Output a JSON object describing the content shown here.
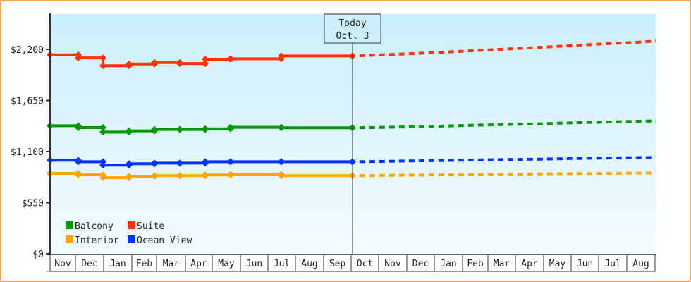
{
  "chart_data": {
    "type": "line",
    "title": "",
    "xlabel": "",
    "ylabel": "",
    "ylim": [
      0,
      2580
    ],
    "y_ticks": [
      "$0",
      "$550",
      "$1,100",
      "$1,650",
      "$2,200"
    ],
    "y_tick_values": [
      0,
      550,
      1100,
      1650,
      2200
    ],
    "categories": [
      "Nov",
      "Dec",
      "Jan",
      "Feb",
      "Mar",
      "Apr",
      "May",
      "Jun",
      "Jul",
      "Aug",
      "Sep",
      "Oct",
      "Nov",
      "Dec",
      "Jan",
      "Feb",
      "Mar",
      "Apr",
      "May",
      "Jun",
      "Jul",
      "Aug"
    ],
    "today": {
      "label": "Today",
      "date": "Oct. 3",
      "month_position": "Oct 3"
    },
    "grid": false,
    "legend_placement": "bottom-left",
    "background": {
      "top": "#cbeffc",
      "bottom": "#f3fbff"
    },
    "series": [
      {
        "name": "Balcony",
        "color": "#009900",
        "history": [
          [
            "Nov 1",
            1378
          ],
          [
            "Dec 1",
            1358
          ],
          [
            "Jan 1",
            1310
          ],
          [
            "Feb 1",
            1323
          ],
          [
            "Mar 1",
            1338
          ],
          [
            "Apr 1",
            1338
          ],
          [
            "May 1",
            1345
          ],
          [
            "Jun 1",
            1361
          ],
          [
            "Aug 1",
            1356
          ],
          [
            "Oct 3",
            1356
          ]
        ],
        "forecast": [
          [
            "Oct 3",
            1356
          ],
          [
            "Nov 1",
            1360
          ],
          [
            "Dec 1",
            1365
          ],
          [
            "Jan 1",
            1372
          ],
          [
            "Feb 1",
            1380
          ],
          [
            "Mar 1",
            1388
          ],
          [
            "Apr 1",
            1394
          ],
          [
            "May 1",
            1400
          ],
          [
            "Jun 1",
            1410
          ],
          [
            "Jul 1",
            1416
          ],
          [
            "Aug 1",
            1424
          ],
          [
            "Sep 1",
            1431
          ]
        ]
      },
      {
        "name": "Suite",
        "color": "#ff3300",
        "history": [
          [
            "Nov 1",
            2142
          ],
          [
            "Dec 1",
            2109
          ],
          [
            "Jan 1",
            2024
          ],
          [
            "Feb 1",
            2043
          ],
          [
            "Mar 1",
            2058
          ],
          [
            "Apr 1",
            2048
          ],
          [
            "May 1",
            2094
          ],
          [
            "Jun 1",
            2099
          ],
          [
            "Aug 1",
            2129
          ],
          [
            "Oct 3",
            2129
          ]
        ],
        "forecast": [
          [
            "Oct 3",
            2129
          ],
          [
            "Nov 1",
            2140
          ],
          [
            "Dec 1",
            2152
          ],
          [
            "Jan 1",
            2165
          ],
          [
            "Feb 1",
            2180
          ],
          [
            "Mar 1",
            2195
          ],
          [
            "Apr 1",
            2210
          ],
          [
            "May 1",
            2225
          ],
          [
            "Jun 1",
            2242
          ],
          [
            "Jul 1",
            2258
          ],
          [
            "Aug 1",
            2272
          ],
          [
            "Sep 1",
            2289
          ]
        ]
      },
      {
        "name": "Interior",
        "color": "#ffa500",
        "history": [
          [
            "Nov 1",
            865
          ],
          [
            "Dec 1",
            850
          ],
          [
            "Jan 1",
            819
          ],
          [
            "Feb 1",
            835
          ],
          [
            "Mar 1",
            840
          ],
          [
            "Apr 1",
            840
          ],
          [
            "May 1",
            848
          ],
          [
            "Jun 1",
            855
          ],
          [
            "Aug 1",
            840
          ],
          [
            "Oct 3",
            840
          ]
        ],
        "forecast": [
          [
            "Oct 3",
            840
          ],
          [
            "Nov 1",
            842
          ],
          [
            "Dec 1",
            846
          ],
          [
            "Jan 1",
            848
          ],
          [
            "Feb 1",
            852
          ],
          [
            "Mar 1",
            854
          ],
          [
            "Apr 1",
            856
          ],
          [
            "May 1",
            860
          ],
          [
            "Jun 1",
            862
          ],
          [
            "Jul 1",
            864
          ],
          [
            "Aug 1",
            868
          ],
          [
            "Sep 1",
            870
          ]
        ]
      },
      {
        "name": "Ocean View",
        "color": "#0033ff",
        "history": [
          [
            "Nov 1",
            1007
          ],
          [
            "Dec 1",
            991
          ],
          [
            "Jan 1",
            954
          ],
          [
            "Feb 1",
            969
          ],
          [
            "Mar 1",
            976
          ],
          [
            "Apr 1",
            976
          ],
          [
            "May 1",
            991
          ],
          [
            "Jun 1",
            991
          ],
          [
            "Aug 1",
            991
          ],
          [
            "Oct 3",
            991
          ]
        ],
        "forecast": [
          [
            "Oct 3",
            991
          ],
          [
            "Nov 1",
            994
          ],
          [
            "Dec 1",
            999
          ],
          [
            "Jan 1",
            1003
          ],
          [
            "Feb 1",
            1008
          ],
          [
            "Mar 1",
            1012
          ],
          [
            "Apr 1",
            1016
          ],
          [
            "May 1",
            1020
          ],
          [
            "Jun 1",
            1026
          ],
          [
            "Jul 1",
            1030
          ],
          [
            "Aug 1",
            1034
          ],
          [
            "Sep 1",
            1037
          ]
        ]
      }
    ]
  }
}
